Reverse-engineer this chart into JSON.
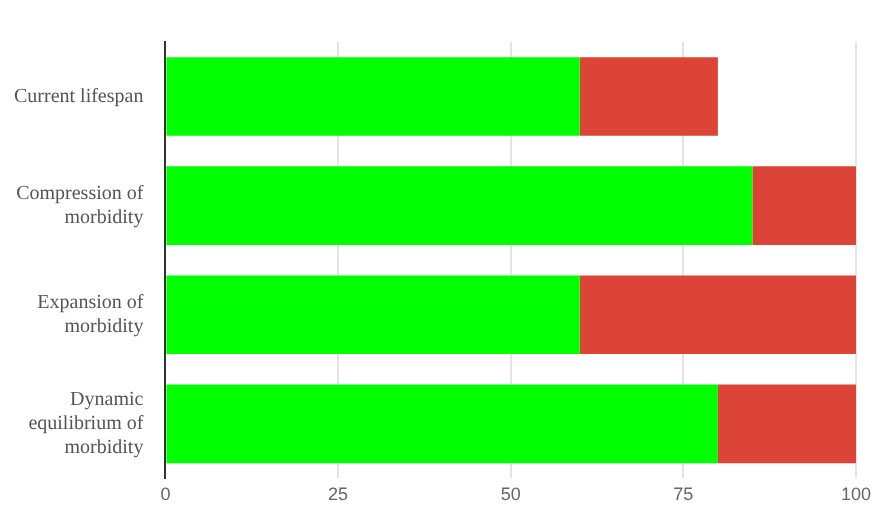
{
  "chart_data": {
    "type": "bar",
    "orientation": "horizontal",
    "stacked": true,
    "categories": [
      "Current lifespan",
      "Compression of morbidity",
      "Expansion of morbidity",
      "Dynamic equilibrium of morbidity"
    ],
    "series": [
      {
        "color": "#00ff00",
        "values": [
          60,
          85,
          60,
          80
        ]
      },
      {
        "color": "#db4437",
        "values": [
          20,
          15,
          40,
          20
        ]
      }
    ],
    "xlim": [
      0,
      100
    ],
    "xticks": [
      0,
      25,
      50,
      75,
      100
    ],
    "grid": "x",
    "legend": false
  }
}
